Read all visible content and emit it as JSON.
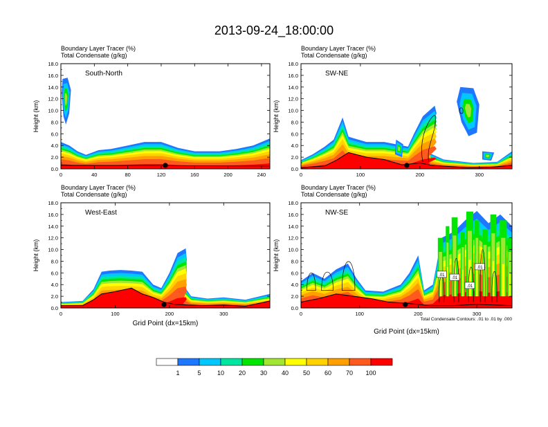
{
  "title": "2013-09-24_18:00:00",
  "field_labels": [
    "Boundary Layer Tracer",
    "(%)",
    "Total Condensate",
    "(g/kg)"
  ],
  "xlabel": "Grid Point (dx=15km)",
  "ylabel": "Height (km)",
  "contour_note": "Total Condensate Contours: .01 to .01 by .000",
  "contour_value_label": ".01",
  "colorbar": {
    "levels": [
      "1",
      "5",
      "10",
      "20",
      "30",
      "40",
      "50",
      "60",
      "70",
      "100"
    ],
    "colors": [
      "#ffffff",
      "#1e78ff",
      "#00c8ff",
      "#00e6a0",
      "#00e600",
      "#a0e632",
      "#ffff00",
      "#ffd200",
      "#ffa000",
      "#ff5a1e",
      "#ff0000"
    ]
  },
  "chart_data": [
    {
      "type": "heatmap",
      "name": "South-North",
      "label": "South-North",
      "ylim": [
        0,
        18
      ],
      "yticks": [
        "0.0",
        "2.0",
        "4.0",
        "6.0",
        "8.0",
        "10.0",
        "12.0",
        "14.0",
        "16.0",
        "18.0"
      ],
      "xlim": [
        0,
        250
      ],
      "xticks": [
        0,
        40,
        80,
        120,
        160,
        200,
        240
      ],
      "marker_x": 125,
      "terrain_top": [
        [
          0,
          0.6
        ],
        [
          250,
          0.5
        ]
      ],
      "tracer_top": [
        [
          0,
          4.6
        ],
        [
          10,
          4.0
        ],
        [
          20,
          3.0
        ],
        [
          30,
          2.4
        ],
        [
          45,
          3.2
        ],
        [
          60,
          3.4
        ],
        [
          80,
          4.0
        ],
        [
          100,
          4.6
        ],
        [
          120,
          4.6
        ],
        [
          140,
          3.6
        ],
        [
          160,
          3.0
        ],
        [
          190,
          3.0
        ],
        [
          210,
          3.4
        ],
        [
          230,
          4.0
        ],
        [
          250,
          5.2
        ]
      ],
      "upper_patches": [
        [
          [
            2,
            15.4
          ],
          [
            8,
            15.6
          ],
          [
            12,
            13.5
          ],
          [
            10,
            9.5
          ],
          [
            6,
            7.6
          ],
          [
            3,
            9.0
          ],
          [
            1,
            13.0
          ]
        ]
      ]
    },
    {
      "type": "heatmap",
      "name": "SW-NE",
      "label": "SW-NE",
      "ylim": [
        0,
        18
      ],
      "yticks": [
        "0.0",
        "2.0",
        "4.0",
        "6.0",
        "8.0",
        "10.0",
        "12.0",
        "14.0",
        "16.0",
        "18.0"
      ],
      "xlim": [
        0,
        355
      ],
      "xticks": [
        0,
        100,
        200,
        300
      ],
      "marker_x": 178,
      "terrain_top": [
        [
          0,
          0.2
        ],
        [
          40,
          0.5
        ],
        [
          60,
          1.5
        ],
        [
          80,
          2.8
        ],
        [
          110,
          2.0
        ],
        [
          140,
          1.6
        ],
        [
          170,
          0.7
        ],
        [
          200,
          1.0
        ],
        [
          220,
          0.6
        ],
        [
          280,
          0.2
        ],
        [
          320,
          0.3
        ],
        [
          355,
          0.6
        ]
      ],
      "tracer_top": [
        [
          0,
          1.5
        ],
        [
          20,
          2.5
        ],
        [
          40,
          3.8
        ],
        [
          55,
          5.0
        ],
        [
          70,
          8.8
        ],
        [
          80,
          5.5
        ],
        [
          110,
          4.6
        ],
        [
          140,
          4.6
        ],
        [
          160,
          4.2
        ],
        [
          180,
          3.8
        ],
        [
          190,
          6.0
        ],
        [
          205,
          9.0
        ],
        [
          225,
          10.8
        ],
        [
          228,
          9.5
        ],
        [
          215,
          6.0
        ],
        [
          218,
          2.6
        ],
        [
          240,
          1.6
        ],
        [
          290,
          1.0
        ],
        [
          330,
          1.2
        ],
        [
          355,
          3.0
        ]
      ],
      "upper_patches": [
        [
          [
            268,
            14.0
          ],
          [
            290,
            13.8
          ],
          [
            300,
            11.0
          ],
          [
            296,
            6.2
          ],
          [
            282,
            5.6
          ],
          [
            270,
            8.0
          ],
          [
            262,
            11.5
          ]
        ],
        [
          [
            160,
            5.0
          ],
          [
            172,
            4.2
          ],
          [
            170,
            2.0
          ],
          [
            158,
            2.5
          ]
        ],
        [
          [
            305,
            3.0
          ],
          [
            325,
            2.8
          ],
          [
            320,
            1.4
          ],
          [
            305,
            1.6
          ]
        ]
      ]
    },
    {
      "type": "heatmap",
      "name": "West-East",
      "label": "West-East",
      "ylim": [
        0,
        18
      ],
      "yticks": [
        "0.0",
        "2.0",
        "4.0",
        "6.0",
        "8.0",
        "10.0",
        "12.0",
        "14.0",
        "16.0",
        "18.0"
      ],
      "xlim": [
        0,
        385
      ],
      "xticks": [
        0,
        100,
        200,
        300
      ],
      "marker_x": 190,
      "terrain_top": [
        [
          0,
          0.4
        ],
        [
          40,
          0.4
        ],
        [
          60,
          1.4
        ],
        [
          75,
          2.4
        ],
        [
          100,
          2.8
        ],
        [
          130,
          3.4
        ],
        [
          150,
          2.4
        ],
        [
          170,
          1.8
        ],
        [
          190,
          1.0
        ],
        [
          210,
          0.6
        ],
        [
          260,
          0.4
        ],
        [
          300,
          0.5
        ],
        [
          340,
          0.3
        ],
        [
          385,
          1.2
        ]
      ],
      "tracer_top": [
        [
          0,
          1.0
        ],
        [
          40,
          1.2
        ],
        [
          60,
          3.2
        ],
        [
          75,
          6.2
        ],
        [
          90,
          6.4
        ],
        [
          110,
          6.5
        ],
        [
          130,
          6.4
        ],
        [
          150,
          6.2
        ],
        [
          170,
          4.0
        ],
        [
          185,
          3.4
        ],
        [
          200,
          6.0
        ],
        [
          215,
          9.4
        ],
        [
          230,
          10.2
        ],
        [
          232,
          8.2
        ],
        [
          225,
          4.0
        ],
        [
          240,
          2.0
        ],
        [
          270,
          1.6
        ],
        [
          300,
          1.8
        ],
        [
          340,
          1.4
        ],
        [
          385,
          2.4
        ]
      ],
      "upper_patches": []
    },
    {
      "type": "heatmap",
      "name": "NW-SE",
      "label": "NW-SE",
      "ylim": [
        0,
        18
      ],
      "yticks": [
        "0.0",
        "2.0",
        "4.0",
        "6.0",
        "8.0",
        "10.0",
        "12.0",
        "14.0",
        "16.0",
        "18.0"
      ],
      "xlim": [
        0,
        360
      ],
      "xticks": [
        0,
        100,
        200,
        300
      ],
      "marker_x": 178,
      "terrain_top": [
        [
          0,
          1.0
        ],
        [
          30,
          1.6
        ],
        [
          60,
          2.4
        ],
        [
          90,
          2.0
        ],
        [
          120,
          1.6
        ],
        [
          150,
          1.0
        ],
        [
          180,
          0.8
        ],
        [
          220,
          0.4
        ],
        [
          260,
          0.4
        ],
        [
          300,
          0.6
        ],
        [
          360,
          0.4
        ]
      ],
      "tracer_top": [
        [
          0,
          4.6
        ],
        [
          20,
          6.0
        ],
        [
          40,
          5.0
        ],
        [
          60,
          6.6
        ],
        [
          80,
          7.6
        ],
        [
          95,
          5.0
        ],
        [
          110,
          3.0
        ],
        [
          140,
          2.8
        ],
        [
          170,
          4.0
        ],
        [
          185,
          6.0
        ],
        [
          200,
          9.0
        ],
        [
          210,
          3.0
        ],
        [
          225,
          4.0
        ],
        [
          240,
          12.0
        ],
        [
          260,
          13.0
        ],
        [
          280,
          15.0
        ],
        [
          300,
          16.6
        ],
        [
          320,
          14.5
        ],
        [
          340,
          16.0
        ],
        [
          360,
          14.0
        ],
        [
          360,
          6.0
        ]
      ],
      "upper_patches": []
    }
  ]
}
